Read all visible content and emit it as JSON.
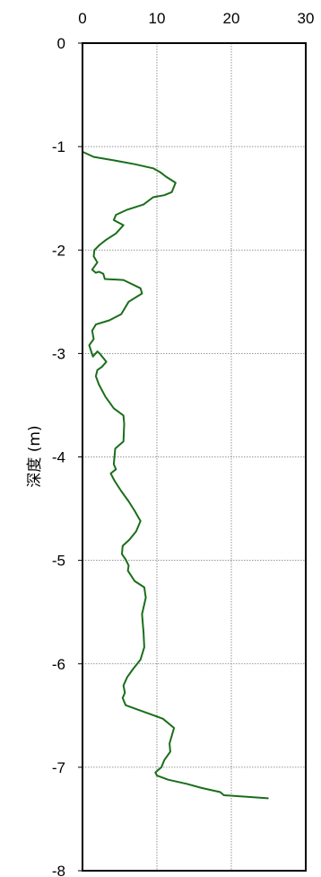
{
  "chart_data": {
    "type": "line",
    "title": "",
    "xlabel": "",
    "ylabel": "深度 (m)",
    "xlim": [
      0,
      30
    ],
    "ylim": [
      -8,
      0
    ],
    "x_ticks": [
      "0",
      "10",
      "20",
      "30"
    ],
    "y_ticks": [
      "0",
      "-1",
      "-2",
      "-3",
      "-4",
      "-5",
      "-6",
      "-7",
      "-8"
    ],
    "x_tick_values": [
      0,
      10,
      20,
      30
    ],
    "y_tick_values": [
      0,
      -1,
      -2,
      -3,
      -4,
      -5,
      -6,
      -7,
      -8
    ],
    "x_axis_position": "top",
    "grid": "vertical and horizontal dotted",
    "line_color": "#1a6e1a",
    "series": [
      {
        "x": [
          0,
          1.5,
          4,
          7,
          9.5,
          10.5,
          11.2,
          12.5,
          12.0,
          11.0,
          9.5,
          8.2,
          6.0,
          4.5,
          4.2,
          5.5,
          4.5,
          3.2,
          2.3,
          1.6,
          1.5,
          2.0,
          1.3,
          1.8,
          2.2,
          2.8,
          3.0,
          5.5,
          7.8,
          8.0,
          6.2,
          5.2,
          3.6,
          1.8,
          1.3,
          1.5,
          0.9,
          1.4,
          2.0,
          2.3,
          3.2,
          2.6,
          2.0,
          1.8,
          2.2,
          3.1,
          4.2,
          5.5,
          5.6,
          5.5,
          4.4,
          4.2,
          4.5,
          3.8,
          4.3,
          5.2,
          6.2,
          7.0,
          7.8,
          7.2,
          6.3,
          5.4,
          5.3,
          5.8,
          6.2,
          6.1,
          7.0,
          8.3,
          8.5,
          8.0,
          8.2,
          8.3,
          7.8,
          6.8,
          6.0,
          5.5,
          5.7,
          5.4,
          5.8,
          8.5,
          10.8,
          12.3,
          11.7,
          11.8,
          11.0,
          10.6,
          9.8,
          10.0,
          11.5,
          14.0,
          16.0,
          18.5,
          19.0,
          24.9
        ],
        "y": [
          -1.05,
          -1.1,
          -1.13,
          -1.17,
          -1.21,
          -1.25,
          -1.29,
          -1.35,
          -1.44,
          -1.47,
          -1.49,
          -1.56,
          -1.61,
          -1.66,
          -1.71,
          -1.76,
          -1.84,
          -1.9,
          -1.95,
          -2.0,
          -2.06,
          -2.12,
          -2.19,
          -2.22,
          -2.21,
          -2.23,
          -2.28,
          -2.29,
          -2.37,
          -2.42,
          -2.5,
          -2.62,
          -2.68,
          -2.72,
          -2.78,
          -2.86,
          -2.92,
          -3.03,
          -2.98,
          -3.0,
          -3.08,
          -3.13,
          -3.16,
          -3.22,
          -3.3,
          -3.42,
          -3.53,
          -3.6,
          -3.68,
          -3.85,
          -3.92,
          -4.07,
          -4.12,
          -4.16,
          -4.23,
          -4.33,
          -4.43,
          -4.52,
          -4.62,
          -4.72,
          -4.8,
          -4.86,
          -4.94,
          -4.99,
          -5.05,
          -5.1,
          -5.2,
          -5.26,
          -5.36,
          -5.52,
          -5.7,
          -5.84,
          -5.96,
          -6.05,
          -6.13,
          -6.21,
          -6.28,
          -6.33,
          -6.4,
          -6.47,
          -6.53,
          -6.62,
          -6.77,
          -6.85,
          -6.93,
          -7.0,
          -7.05,
          -7.08,
          -7.12,
          -7.16,
          -7.2,
          -7.24,
          -7.27,
          -7.3
        ]
      }
    ]
  }
}
